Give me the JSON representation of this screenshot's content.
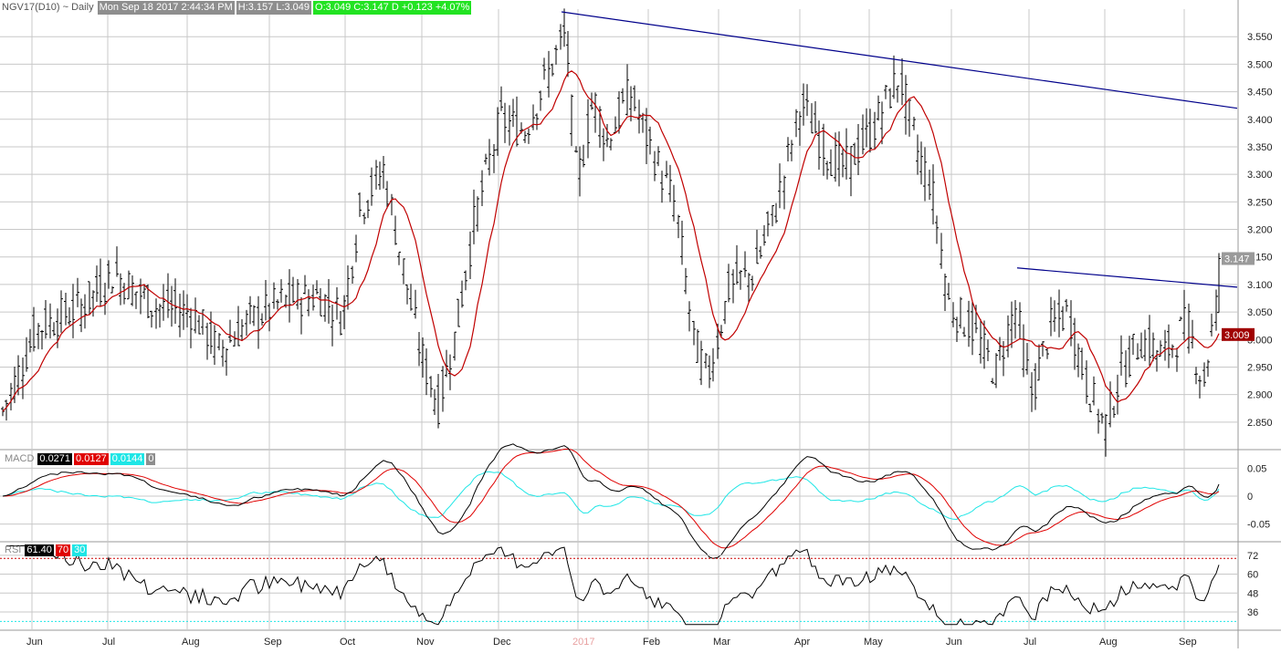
{
  "header": {
    "symbol": "NGV17(D10) ~ Daily",
    "datetime": "Mon Sep 18 2017 2:44:34 PM",
    "high_low": "H:3.157  L:3.049",
    "open_close": "O:3.049  C:3.147 D  +0.123  +4.07%"
  },
  "colors": {
    "price_bars": "#000000",
    "moving_average": "#c00000",
    "trendline": "#00008b",
    "macd_line": "#000000",
    "macd_signal": "#e00000",
    "macd_histogram": "#1ee6e6",
    "rsi_line": "#000000",
    "rsi_overbought": "#cc0000",
    "rsi_oversold": "#1ee6e6",
    "grid": "#c8c8c8"
  },
  "price_panel": {
    "y_ticks": [
      "3.550",
      "3.500",
      "3.450",
      "3.400",
      "3.350",
      "3.300",
      "3.250",
      "3.200",
      "3.150",
      "3.100",
      "3.050",
      "3.000",
      "2.950",
      "2.900",
      "2.850"
    ],
    "last_price_badge": "3.147",
    "ma_badge": "3.009"
  },
  "macd_panel": {
    "name": "MACD",
    "values": [
      "0.0271",
      "0.0127",
      "0.0144",
      "0"
    ],
    "y_ticks": [
      "0.05",
      "0",
      "-0.05"
    ]
  },
  "rsi_panel": {
    "name": "RSI",
    "values": [
      "61.40",
      "70",
      "30"
    ],
    "y_ticks": [
      "72",
      "60",
      "48",
      "36"
    ]
  },
  "x_labels": [
    "Jun",
    "Jul",
    "Aug",
    "Sep",
    "Oct",
    "Nov",
    "Dec",
    "2017",
    "Feb",
    "Mar",
    "Apr",
    "May",
    "Jun",
    "Jul",
    "Aug",
    "Sep"
  ],
  "chart_data": [
    {
      "type": "ohlc",
      "panel": "price",
      "series": [
        {
          "name": "NGV17(D10)",
          "values": [
            {
              "x": "Jun",
              "y": 2.9
            },
            {
              "x": "mid-Jun",
              "y": 3.02
            },
            {
              "x": "Jul",
              "y": 3.12
            },
            {
              "x": "mid-Jul",
              "y": 3.06
            },
            {
              "x": "Aug",
              "y": 3.04
            },
            {
              "x": "mid-Aug",
              "y": 2.97
            },
            {
              "x": "Sep",
              "y": 3.05
            },
            {
              "x": "mid-Sep",
              "y": 3.07
            },
            {
              "x": "Oct",
              "y": 3.06
            },
            {
              "x": "early-Oct",
              "y": 3.32
            },
            {
              "x": "Nov",
              "y": 3.01
            },
            {
              "x": "mid-Nov",
              "y": 2.88
            },
            {
              "x": "late-Nov",
              "y": 3.0
            },
            {
              "x": "Dec",
              "y": 3.4
            },
            {
              "x": "late-Dec",
              "y": 3.58
            },
            {
              "x": "2017",
              "y": 3.4
            },
            {
              "x": "mid-Jan",
              "y": 3.32
            },
            {
              "x": "late-Jan",
              "y": 3.48
            },
            {
              "x": "Feb",
              "y": 3.3
            },
            {
              "x": "late-Feb",
              "y": 3.2
            },
            {
              "x": "early-Mar",
              "y": 2.95
            },
            {
              "x": "Mar",
              "y": 3.1
            },
            {
              "x": "late-Mar",
              "y": 3.3
            },
            {
              "x": "Apr",
              "y": 3.45
            },
            {
              "x": "mid-Apr",
              "y": 3.32
            },
            {
              "x": "May",
              "y": 3.48
            },
            {
              "x": "mid-May",
              "y": 3.36
            },
            {
              "x": "Jun",
              "y": 3.05
            },
            {
              "x": "mid-Jun",
              "y": 2.94
            },
            {
              "x": "Jul",
              "y": 3.0
            },
            {
              "x": "mid-Jul",
              "y": 3.04
            },
            {
              "x": "Aug",
              "y": 2.86
            },
            {
              "x": "mid-Aug",
              "y": 2.97
            },
            {
              "x": "Sep",
              "y": 3.0
            },
            {
              "x": "Sep 18",
              "y": 3.147
            }
          ]
        }
      ],
      "trendlines": [
        {
          "from": {
            "x": "late-Dec",
            "y": 3.595
          },
          "to": {
            "x": "Sep 18",
            "y": 3.42
          }
        },
        {
          "from": {
            "x": "early-Jul",
            "y": 3.13
          },
          "to": {
            "x": "Sep 18",
            "y": 3.095
          }
        }
      ],
      "ylim": [
        2.8,
        3.6
      ]
    },
    {
      "type": "line",
      "panel": "macd",
      "series": [
        {
          "name": "MACD",
          "value": 0.0271
        },
        {
          "name": "Signal",
          "value": 0.0127
        },
        {
          "name": "Histogram",
          "value": 0.0144
        }
      ],
      "ylim": [
        -0.08,
        0.08
      ]
    },
    {
      "type": "line",
      "panel": "rsi",
      "series": [
        {
          "name": "RSI",
          "value": 61.4
        },
        {
          "name": "Overbought",
          "value": 70
        },
        {
          "name": "Oversold",
          "value": 30
        }
      ],
      "ylim": [
        25,
        80
      ]
    }
  ]
}
